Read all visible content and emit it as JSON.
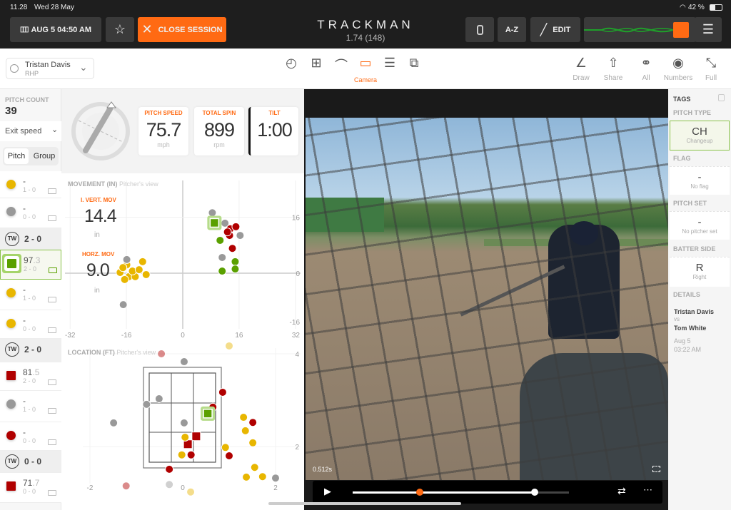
{
  "status": {
    "time": "11.28",
    "date": "Wed 28 May",
    "battery": "42 %"
  },
  "topbar": {
    "session_label": "AUG 5 04:50 AM",
    "close_label": "CLOSE SESSION",
    "logo": "TRACKMAN",
    "version": "1.74 (148)",
    "az_label": "A-Z",
    "edit_label": "EDIT",
    "accent": "#ff6a13"
  },
  "player": {
    "name": "Tristan Davis",
    "hand": "RHP"
  },
  "toolbar": {
    "camera_label": "Camera",
    "draw": "Draw",
    "share": "Share",
    "all": "All",
    "numbers": "Numbers",
    "full": "Full"
  },
  "sidebar": {
    "pitch_count_label": "PITCH COUNT",
    "pitch_count": "39",
    "metric_select": "Exit speed",
    "toggle": [
      "Pitch",
      "Group"
    ],
    "rows": [
      {
        "type": "pitch",
        "color": "#e8b600",
        "shape": "circle",
        "value": "-",
        "count": "1 - 0"
      },
      {
        "type": "pitch",
        "color": "#999999",
        "shape": "circle",
        "value": "-",
        "count": "0 - 0"
      },
      {
        "type": "batter",
        "badge": "TW",
        "count": "2 - 0"
      },
      {
        "type": "pitch",
        "color": "#5aa000",
        "shape": "square",
        "value": "97",
        "value_dec": ".3",
        "count": "2 - 0",
        "selected": true
      },
      {
        "type": "pitch",
        "color": "#e8b600",
        "shape": "circle",
        "value": "-",
        "count": "1 - 0"
      },
      {
        "type": "pitch",
        "color": "#e8b600",
        "shape": "circle",
        "value": "-",
        "count": "0 - 0"
      },
      {
        "type": "batter",
        "badge": "TW",
        "count": "2 - 0"
      },
      {
        "type": "pitch",
        "color": "#b00000",
        "shape": "square",
        "value": "81",
        "value_dec": ".5",
        "count": "2 - 0"
      },
      {
        "type": "pitch",
        "color": "#999999",
        "shape": "circle",
        "value": "-",
        "count": "1 - 0"
      },
      {
        "type": "pitch",
        "color": "#b00000",
        "shape": "circle",
        "value": "-",
        "count": "0 - 0"
      },
      {
        "type": "batter",
        "badge": "TW",
        "count": "0 - 0"
      },
      {
        "type": "pitch",
        "color": "#b00000",
        "shape": "square",
        "value": "71",
        "value_dec": ".7",
        "count": "0 - 0"
      }
    ]
  },
  "metrics": {
    "speed": {
      "label": "PITCH SPEED",
      "value": "75.7",
      "unit": "mph"
    },
    "spin": {
      "label": "TOTAL SPIN",
      "value": "899",
      "unit": "rpm"
    },
    "tilt": {
      "label": "TILT",
      "value": "1:00"
    }
  },
  "movement": {
    "title": "MOVEMENT (IN)",
    "subtitle": "Pitcher's view",
    "vert_label": "I. VERT. MOV",
    "vert_value": "14.4",
    "horz_label": "HORZ. MOV",
    "horz_value": "9.0",
    "unit": "in",
    "x_ticks": [
      "-32",
      "-16",
      "0",
      "16",
      "32"
    ],
    "y_ticks": [
      "16",
      "0",
      "-16"
    ],
    "points": [
      {
        "c": "yellow",
        "x": -15.9,
        "y": 2.4
      },
      {
        "c": "yellow",
        "x": -11.4,
        "y": 3.3
      },
      {
        "c": "yellow",
        "x": -17.8,
        "y": 0.2
      },
      {
        "c": "yellow",
        "x": -15.3,
        "y": -1
      },
      {
        "c": "yellow",
        "x": -13.5,
        "y": -1
      },
      {
        "c": "yellow",
        "x": -16.5,
        "y": -1.8
      },
      {
        "c": "yellow",
        "x": -14.3,
        "y": 0.6
      },
      {
        "c": "yellow",
        "x": -17,
        "y": 1.6
      },
      {
        "c": "yellow",
        "x": -10.4,
        "y": -0.4
      },
      {
        "c": "yellow",
        "x": -12.4,
        "y": 1
      },
      {
        "c": "gray",
        "x": 8.4,
        "y": 17.3
      },
      {
        "c": "gray",
        "x": -15.9,
        "y": 3.9
      },
      {
        "c": "gray",
        "x": -16.9,
        "y": -9
      },
      {
        "c": "gray",
        "x": 12,
        "y": 14.3
      },
      {
        "c": "gray",
        "x": 16.3,
        "y": 10.8
      },
      {
        "c": "gray",
        "x": 11.2,
        "y": 4.5
      },
      {
        "c": "red",
        "x": 13.5,
        "y": 12.7
      },
      {
        "c": "red",
        "x": 15.1,
        "y": 13.3
      },
      {
        "c": "red",
        "x": 13.3,
        "y": 10.8
      },
      {
        "c": "red",
        "x": 14.1,
        "y": 7.1
      },
      {
        "c": "red",
        "x": 12.7,
        "y": 11.8
      },
      {
        "c": "green",
        "x": 10.6,
        "y": 9.4
      },
      {
        "c": "green",
        "x": 14.9,
        "y": 3.3
      },
      {
        "c": "green",
        "x": 11.2,
        "y": 0.6
      },
      {
        "c": "green",
        "x": 14.9,
        "y": 1.2
      },
      {
        "c": "green",
        "x": 9.0,
        "y": 14.4,
        "selected": true
      }
    ]
  },
  "location": {
    "title": "LOCATION (FT)",
    "subtitle": "Pitcher's view",
    "x_ticks": [
      "-2",
      "0",
      "2"
    ],
    "y_ticks": [
      "4",
      "2"
    ],
    "points": [
      {
        "c": "gray",
        "x": 0.03,
        "y": 3.83
      },
      {
        "c": "gray",
        "x": -0.51,
        "y": 3.03
      },
      {
        "c": "gray",
        "x": -0.78,
        "y": 2.91
      },
      {
        "c": "gray",
        "x": -1.49,
        "y": 2.51
      },
      {
        "c": "gray",
        "x": 0.03,
        "y": 2.51
      },
      {
        "c": "gray",
        "x": 2.0,
        "y": 1.32
      },
      {
        "c": "gray",
        "x": -0.29,
        "y": 1.18,
        "faded": true
      },
      {
        "c": "red",
        "x": 0.86,
        "y": 3.17
      },
      {
        "c": "red",
        "x": 0.65,
        "y": 2.85
      },
      {
        "c": "red",
        "x": 1.51,
        "y": 2.52
      },
      {
        "c": "red",
        "x": 0.18,
        "y": 1.82
      },
      {
        "c": "red",
        "x": 1.0,
        "y": 1.8
      },
      {
        "c": "red",
        "x": -0.29,
        "y": 1.51
      },
      {
        "c": "red",
        "x": 0.29,
        "y": 2.22,
        "square": true
      },
      {
        "c": "red",
        "x": 0.11,
        "y": 2.05,
        "square": true
      },
      {
        "c": "yellow",
        "x": 1.31,
        "y": 2.63
      },
      {
        "c": "yellow",
        "x": 1.35,
        "y": 2.34
      },
      {
        "c": "yellow",
        "x": 1.51,
        "y": 2.08
      },
      {
        "c": "yellow",
        "x": 0.05,
        "y": 2.2
      },
      {
        "c": "yellow",
        "x": -0.02,
        "y": 1.82
      },
      {
        "c": "yellow",
        "x": 0.92,
        "y": 1.98
      },
      {
        "c": "yellow",
        "x": 1.55,
        "y": 1.55
      },
      {
        "c": "yellow",
        "x": 1.37,
        "y": 1.34
      },
      {
        "c": "yellow",
        "x": 1.72,
        "y": 1.35
      },
      {
        "c": "red",
        "x": -0.46,
        "y": 4.0,
        "faded": true
      },
      {
        "c": "yellow",
        "x": 1.0,
        "y": 4.17,
        "faded": true
      },
      {
        "c": "red",
        "x": -1.22,
        "y": 1.15,
        "faded": true
      },
      {
        "c": "yellow",
        "x": 0.17,
        "y": 1.02,
        "faded": true
      },
      {
        "c": "green",
        "x": 0.54,
        "y": 2.71,
        "selected": true
      }
    ]
  },
  "colors": {
    "yellow": "#e8b600",
    "gray": "#999999",
    "red": "#b00000",
    "green": "#5aa000"
  },
  "video": {
    "timestamp": "0.512s",
    "progress": 0.84,
    "marker": 0.31
  },
  "tags": {
    "title": "TAGS",
    "pitch_type_label": "PITCH TYPE",
    "pitch_type": "CH",
    "pitch_type_name": "Changeup",
    "flag_label": "FLAG",
    "flag": "-",
    "flag_name": "No flag",
    "pitch_set_label": "PITCH SET",
    "pitch_set": "-",
    "pitch_set_name": "No pitcher set",
    "batter_side_label": "BATTER SIDE",
    "batter_side": "R",
    "batter_side_name": "Right",
    "details_label": "DETAILS",
    "pitcher": "Tristan Davis",
    "vs": "vs",
    "batter": "Tom White",
    "date": "Aug 5",
    "time": "03:22 AM"
  }
}
